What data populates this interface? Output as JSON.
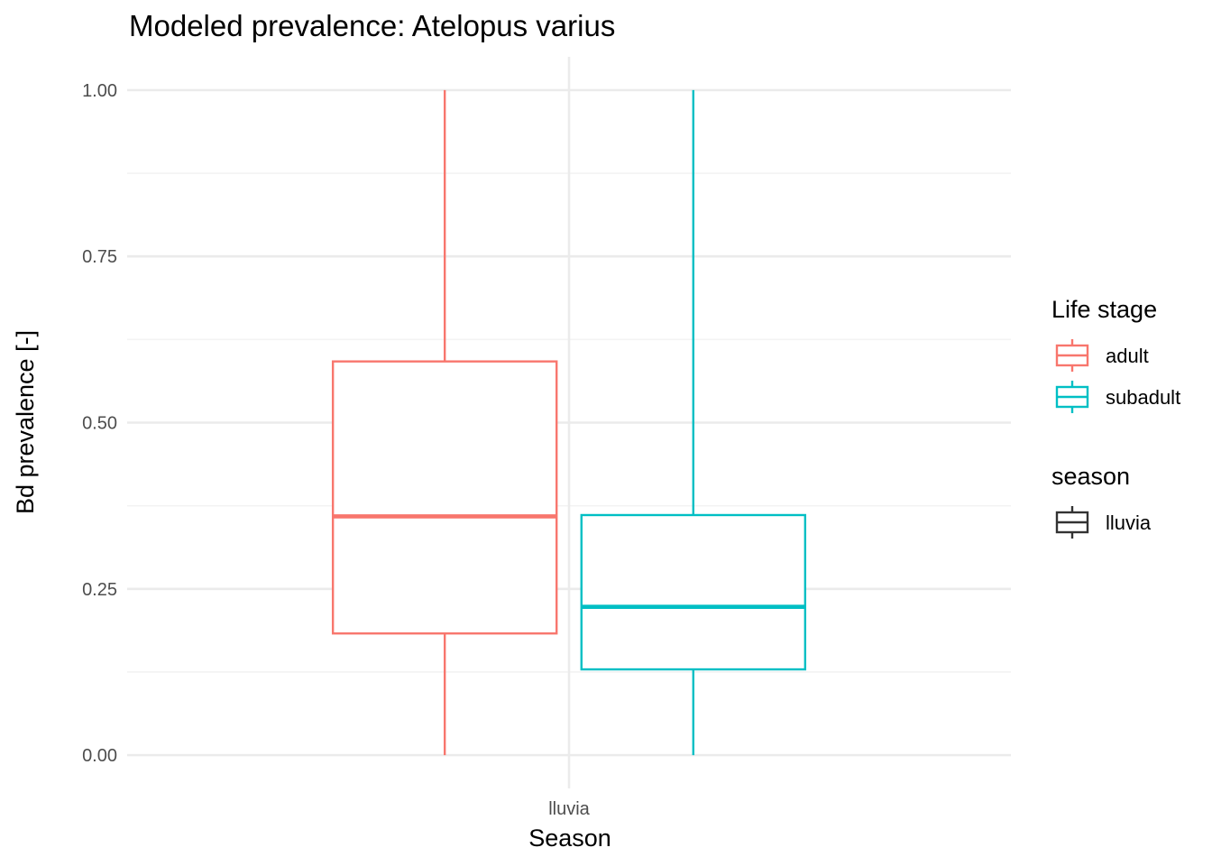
{
  "chart_data": {
    "type": "boxplot",
    "title": "Modeled prevalence: Atelopus varius",
    "xlabel": "Season",
    "ylabel": "Bd prevalence [-]",
    "categories": [
      "lluvia"
    ],
    "ylim": [
      -0.05,
      1.05
    ],
    "y_ticks": [
      0.0,
      0.25,
      0.5,
      0.75,
      1.0
    ],
    "y_tick_labels": [
      "0.00",
      "0.25",
      "0.50",
      "0.75",
      "1.00"
    ],
    "grid": true,
    "legend_position": "right",
    "series": [
      {
        "name": "adult",
        "color": "#F8766D",
        "category": "lluvia",
        "min": 0.0,
        "q1": 0.183,
        "median": 0.359,
        "q3": 0.592,
        "max": 1.0
      },
      {
        "name": "subadult",
        "color": "#00BFC4",
        "category": "lluvia",
        "min": 0.0,
        "q1": 0.129,
        "median": 0.223,
        "q3": 0.361,
        "max": 1.0
      }
    ],
    "legends": [
      {
        "title": "Life stage",
        "items": [
          {
            "label": "adult",
            "color": "#F8766D"
          },
          {
            "label": "subadult",
            "color": "#00BFC4"
          }
        ]
      },
      {
        "title": "season",
        "items": [
          {
            "label": "lluvia",
            "color": "#333333"
          }
        ]
      }
    ]
  }
}
